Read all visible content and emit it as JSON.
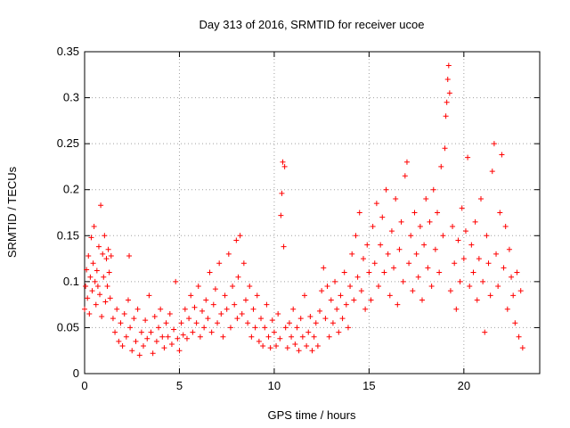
{
  "chart_data": {
    "type": "scatter",
    "title": "Day 313 of 2016, SRMTID for receiver ucoe",
    "xlabel": "GPS time / hours",
    "ylabel": "SRMTID / TECUs",
    "xlim": [
      0,
      24
    ],
    "ylim": [
      0,
      0.35
    ],
    "xticks": [
      0,
      5,
      10,
      15,
      20
    ],
    "xtick_labels": [
      "0",
      "5",
      "10",
      "15",
      "20"
    ],
    "yticks": [
      0,
      0.05,
      0.1,
      0.15,
      0.2,
      0.25,
      0.3,
      0.35
    ],
    "ytick_labels": [
      "0",
      "0.05",
      "0.1",
      "0.15",
      "0.2",
      "0.25",
      "0.3",
      "0.35"
    ],
    "grid": true,
    "marker": "+",
    "series": [
      {
        "name": "SRMTID",
        "color": "#ff0000",
        "points": [
          [
            0.0,
            0.07
          ],
          [
            0.05,
            0.095
          ],
          [
            0.1,
            0.113
          ],
          [
            0.15,
            0.082
          ],
          [
            0.2,
            0.128
          ],
          [
            0.25,
            0.065
          ],
          [
            0.3,
            0.105
          ],
          [
            0.35,
            0.148
          ],
          [
            0.4,
            0.09
          ],
          [
            0.45,
            0.12
          ],
          [
            0.5,
            0.16
          ],
          [
            0.55,
            0.1
          ],
          [
            0.6,
            0.075
          ],
          [
            0.65,
            0.112
          ],
          [
            0.7,
            0.095
          ],
          [
            0.75,
            0.138
          ],
          [
            0.8,
            0.086
          ],
          [
            0.85,
            0.183
          ],
          [
            0.9,
            0.062
          ],
          [
            0.95,
            0.13
          ],
          [
            1.0,
            0.105
          ],
          [
            1.05,
            0.15
          ],
          [
            1.1,
            0.078
          ],
          [
            1.15,
            0.125
          ],
          [
            1.2,
            0.095
          ],
          [
            1.25,
            0.135
          ],
          [
            1.3,
            0.11
          ],
          [
            1.35,
            0.082
          ],
          [
            1.4,
            0.128
          ],
          [
            1.5,
            0.06
          ],
          [
            1.6,
            0.045
          ],
          [
            1.7,
            0.07
          ],
          [
            1.8,
            0.035
          ],
          [
            1.9,
            0.055
          ],
          [
            2.0,
            0.03
          ],
          [
            2.1,
            0.065
          ],
          [
            2.2,
            0.04
          ],
          [
            2.3,
            0.08
          ],
          [
            2.35,
            0.128
          ],
          [
            2.4,
            0.05
          ],
          [
            2.5,
            0.025
          ],
          [
            2.6,
            0.06
          ],
          [
            2.7,
            0.035
          ],
          [
            2.8,
            0.07
          ],
          [
            2.9,
            0.02
          ],
          [
            3.0,
            0.045
          ],
          [
            3.1,
            0.03
          ],
          [
            3.2,
            0.058
          ],
          [
            3.3,
            0.038
          ],
          [
            3.4,
            0.085
          ],
          [
            3.5,
            0.045
          ],
          [
            3.6,
            0.022
          ],
          [
            3.7,
            0.062
          ],
          [
            3.8,
            0.035
          ],
          [
            3.9,
            0.05
          ],
          [
            4.0,
            0.07
          ],
          [
            4.1,
            0.04
          ],
          [
            4.2,
            0.028
          ],
          [
            4.3,
            0.055
          ],
          [
            4.4,
            0.04
          ],
          [
            4.5,
            0.065
          ],
          [
            4.6,
            0.032
          ],
          [
            4.7,
            0.048
          ],
          [
            4.8,
            0.1
          ],
          [
            4.9,
            0.038
          ],
          [
            5.0,
            0.025
          ],
          [
            5.1,
            0.055
          ],
          [
            5.2,
            0.042
          ],
          [
            5.3,
            0.07
          ],
          [
            5.4,
            0.038
          ],
          [
            5.5,
            0.06
          ],
          [
            5.6,
            0.085
          ],
          [
            5.7,
            0.045
          ],
          [
            5.8,
            0.072
          ],
          [
            5.9,
            0.055
          ],
          [
            6.0,
            0.095
          ],
          [
            6.1,
            0.04
          ],
          [
            6.2,
            0.068
          ],
          [
            6.3,
            0.05
          ],
          [
            6.4,
            0.08
          ],
          [
            6.5,
            0.06
          ],
          [
            6.6,
            0.11
          ],
          [
            6.7,
            0.045
          ],
          [
            6.8,
            0.075
          ],
          [
            6.9,
            0.092
          ],
          [
            7.0,
            0.055
          ],
          [
            7.1,
            0.12
          ],
          [
            7.2,
            0.065
          ],
          [
            7.3,
            0.04
          ],
          [
            7.4,
            0.085
          ],
          [
            7.5,
            0.07
          ],
          [
            7.6,
            0.13
          ],
          [
            7.7,
            0.05
          ],
          [
            7.8,
            0.095
          ],
          [
            7.9,
            0.075
          ],
          [
            8.0,
            0.145
          ],
          [
            8.05,
            0.06
          ],
          [
            8.1,
            0.105
          ],
          [
            8.2,
            0.15
          ],
          [
            8.3,
            0.065
          ],
          [
            8.4,
            0.12
          ],
          [
            8.5,
            0.08
          ],
          [
            8.6,
            0.055
          ],
          [
            8.7,
            0.095
          ],
          [
            8.8,
            0.04
          ],
          [
            8.9,
            0.07
          ],
          [
            9.0,
            0.05
          ],
          [
            9.1,
            0.085
          ],
          [
            9.2,
            0.035
          ],
          [
            9.3,
            0.06
          ],
          [
            9.4,
            0.03
          ],
          [
            9.5,
            0.05
          ],
          [
            9.6,
            0.075
          ],
          [
            9.7,
            0.04
          ],
          [
            9.8,
            0.028
          ],
          [
            9.9,
            0.058
          ],
          [
            10.0,
            0.045
          ],
          [
            10.1,
            0.03
          ],
          [
            10.2,
            0.065
          ],
          [
            10.3,
            0.038
          ],
          [
            10.35,
            0.172
          ],
          [
            10.4,
            0.196
          ],
          [
            10.45,
            0.23
          ],
          [
            10.5,
            0.138
          ],
          [
            10.55,
            0.225
          ],
          [
            10.6,
            0.05
          ],
          [
            10.7,
            0.028
          ],
          [
            10.8,
            0.055
          ],
          [
            10.9,
            0.04
          ],
          [
            11.0,
            0.07
          ],
          [
            11.1,
            0.032
          ],
          [
            11.2,
            0.05
          ],
          [
            11.3,
            0.025
          ],
          [
            11.4,
            0.06
          ],
          [
            11.5,
            0.04
          ],
          [
            11.6,
            0.085
          ],
          [
            11.7,
            0.03
          ],
          [
            11.8,
            0.045
          ],
          [
            11.9,
            0.062
          ],
          [
            12.0,
            0.025
          ],
          [
            12.1,
            0.04
          ],
          [
            12.2,
            0.055
          ],
          [
            12.3,
            0.03
          ],
          [
            12.4,
            0.068
          ],
          [
            12.5,
            0.09
          ],
          [
            12.6,
            0.115
          ],
          [
            12.7,
            0.06
          ],
          [
            12.8,
            0.095
          ],
          [
            12.9,
            0.04
          ],
          [
            13.0,
            0.08
          ],
          [
            13.1,
            0.055
          ],
          [
            13.2,
            0.1
          ],
          [
            13.3,
            0.07
          ],
          [
            13.4,
            0.045
          ],
          [
            13.5,
            0.085
          ],
          [
            13.6,
            0.06
          ],
          [
            13.7,
            0.11
          ],
          [
            13.8,
            0.075
          ],
          [
            13.9,
            0.05
          ],
          [
            14.0,
            0.095
          ],
          [
            14.1,
            0.13
          ],
          [
            14.2,
            0.08
          ],
          [
            14.3,
            0.15
          ],
          [
            14.4,
            0.105
          ],
          [
            14.5,
            0.175
          ],
          [
            14.6,
            0.09
          ],
          [
            14.7,
            0.125
          ],
          [
            14.8,
            0.07
          ],
          [
            14.9,
            0.14
          ],
          [
            15.0,
            0.11
          ],
          [
            15.1,
            0.08
          ],
          [
            15.2,
            0.16
          ],
          [
            15.3,
            0.12
          ],
          [
            15.4,
            0.185
          ],
          [
            15.5,
            0.095
          ],
          [
            15.6,
            0.14
          ],
          [
            15.7,
            0.17
          ],
          [
            15.8,
            0.11
          ],
          [
            15.9,
            0.2
          ],
          [
            16.0,
            0.13
          ],
          [
            16.1,
            0.085
          ],
          [
            16.2,
            0.155
          ],
          [
            16.3,
            0.115
          ],
          [
            16.4,
            0.19
          ],
          [
            16.5,
            0.075
          ],
          [
            16.6,
            0.135
          ],
          [
            16.7,
            0.165
          ],
          [
            16.8,
            0.1
          ],
          [
            16.9,
            0.215
          ],
          [
            17.0,
            0.23
          ],
          [
            17.1,
            0.12
          ],
          [
            17.2,
            0.15
          ],
          [
            17.3,
            0.09
          ],
          [
            17.4,
            0.175
          ],
          [
            17.5,
            0.13
          ],
          [
            17.6,
            0.105
          ],
          [
            17.7,
            0.16
          ],
          [
            17.8,
            0.08
          ],
          [
            17.9,
            0.14
          ],
          [
            18.0,
            0.19
          ],
          [
            18.1,
            0.115
          ],
          [
            18.2,
            0.165
          ],
          [
            18.3,
            0.095
          ],
          [
            18.4,
            0.2
          ],
          [
            18.5,
            0.135
          ],
          [
            18.6,
            0.175
          ],
          [
            18.7,
            0.11
          ],
          [
            18.8,
            0.225
          ],
          [
            18.9,
            0.15
          ],
          [
            19.0,
            0.245
          ],
          [
            19.05,
            0.28
          ],
          [
            19.1,
            0.295
          ],
          [
            19.15,
            0.32
          ],
          [
            19.2,
            0.335
          ],
          [
            19.25,
            0.305
          ],
          [
            19.3,
            0.09
          ],
          [
            19.4,
            0.16
          ],
          [
            19.5,
            0.12
          ],
          [
            19.6,
            0.07
          ],
          [
            19.7,
            0.145
          ],
          [
            19.8,
            0.1
          ],
          [
            19.9,
            0.18
          ],
          [
            20.0,
            0.125
          ],
          [
            20.1,
            0.155
          ],
          [
            20.2,
            0.235
          ],
          [
            20.3,
            0.095
          ],
          [
            20.4,
            0.14
          ],
          [
            20.5,
            0.11
          ],
          [
            20.6,
            0.165
          ],
          [
            20.7,
            0.08
          ],
          [
            20.8,
            0.125
          ],
          [
            20.9,
            0.19
          ],
          [
            21.0,
            0.1
          ],
          [
            21.1,
            0.045
          ],
          [
            21.2,
            0.15
          ],
          [
            21.3,
            0.12
          ],
          [
            21.4,
            0.085
          ],
          [
            21.5,
            0.22
          ],
          [
            21.6,
            0.25
          ],
          [
            21.7,
            0.13
          ],
          [
            21.8,
            0.095
          ],
          [
            21.9,
            0.175
          ],
          [
            22.0,
            0.238
          ],
          [
            22.1,
            0.115
          ],
          [
            22.2,
            0.16
          ],
          [
            22.3,
            0.07
          ],
          [
            22.4,
            0.135
          ],
          [
            22.5,
            0.105
          ],
          [
            22.6,
            0.085
          ],
          [
            22.7,
            0.055
          ],
          [
            22.8,
            0.11
          ],
          [
            22.9,
            0.04
          ],
          [
            23.0,
            0.09
          ],
          [
            23.1,
            0.028
          ]
        ]
      }
    ]
  }
}
